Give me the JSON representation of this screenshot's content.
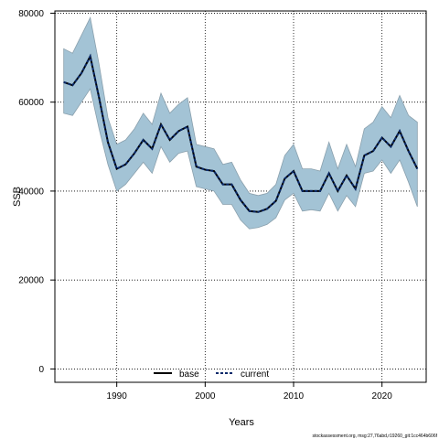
{
  "chart_data": {
    "type": "line",
    "xlabel": "Years",
    "ylabel": "SSB",
    "xlim": [
      1983,
      2025
    ],
    "ylim": [
      -3000,
      80500
    ],
    "x_ticks": [
      1990,
      2000,
      2010,
      2020
    ],
    "y_ticks": [
      0,
      20000,
      40000,
      60000,
      80000
    ],
    "grid": true,
    "legend_position": "bottom-center",
    "years": [
      1984,
      1985,
      1986,
      1987,
      1988,
      1989,
      1990,
      1991,
      1992,
      1993,
      1994,
      1995,
      1996,
      1997,
      1998,
      1999,
      2000,
      2001,
      2002,
      2003,
      2004,
      2005,
      2006,
      2007,
      2008,
      2009,
      2010,
      2011,
      2012,
      2013,
      2014,
      2015,
      2016,
      2017,
      2018,
      2019,
      2020,
      2021,
      2022,
      2023,
      2024
    ],
    "series": [
      {
        "name": "base",
        "color": "#000000",
        "line_style": "solid",
        "values": [
          64500,
          63800,
          66500,
          70300,
          61000,
          51000,
          45000,
          46000,
          48500,
          51500,
          49500,
          55000,
          51500,
          53500,
          54500,
          45500,
          44800,
          44500,
          41500,
          41500,
          38000,
          35500,
          35300,
          36000,
          37800,
          42800,
          44500,
          40000,
          40000,
          40000,
          44000,
          40000,
          43500,
          40500,
          48000,
          49000,
          52000,
          50000,
          53500,
          49000,
          45000
        ]
      },
      {
        "name": "current",
        "color": "#0a2a6b",
        "line_style": "dashed",
        "values": [
          64500,
          63800,
          66500,
          70300,
          61000,
          51000,
          45000,
          46000,
          48500,
          51500,
          49500,
          55000,
          51500,
          53500,
          54500,
          45500,
          44800,
          44500,
          41500,
          41500,
          38000,
          35500,
          35300,
          36000,
          37800,
          42800,
          44500,
          40000,
          40000,
          40000,
          44000,
          40000,
          43500,
          40500,
          48000,
          49000,
          52000,
          50000,
          53500,
          49000,
          45000
        ]
      }
    ],
    "confidence_band": {
      "color": "#a3c3d5",
      "lower": [
        57500,
        57000,
        60000,
        63000,
        54000,
        46000,
        40000,
        41500,
        44000,
        46500,
        44000,
        50000,
        46500,
        48500,
        49000,
        41000,
        40500,
        40000,
        37000,
        37000,
        33500,
        31500,
        31800,
        32500,
        34000,
        38000,
        39500,
        35500,
        35800,
        35500,
        39500,
        35500,
        39000,
        36500,
        44000,
        44500,
        47000,
        44000,
        47000,
        42000,
        36500
      ],
      "upper": [
        72000,
        71000,
        75000,
        79000,
        68500,
        56500,
        50500,
        51500,
        54000,
        57500,
        55000,
        62000,
        57500,
        59500,
        61000,
        50500,
        50000,
        49500,
        46000,
        46500,
        42500,
        39500,
        39000,
        39500,
        41500,
        48000,
        50500,
        45000,
        45000,
        44500,
        51000,
        45000,
        50500,
        45500,
        54000,
        55500,
        59000,
        56500,
        61500,
        57000,
        55500
      ]
    }
  },
  "footer": {
    "credit": "stockassessment.org, msg:27,76abd,r19260_git:1cc464b606f"
  }
}
